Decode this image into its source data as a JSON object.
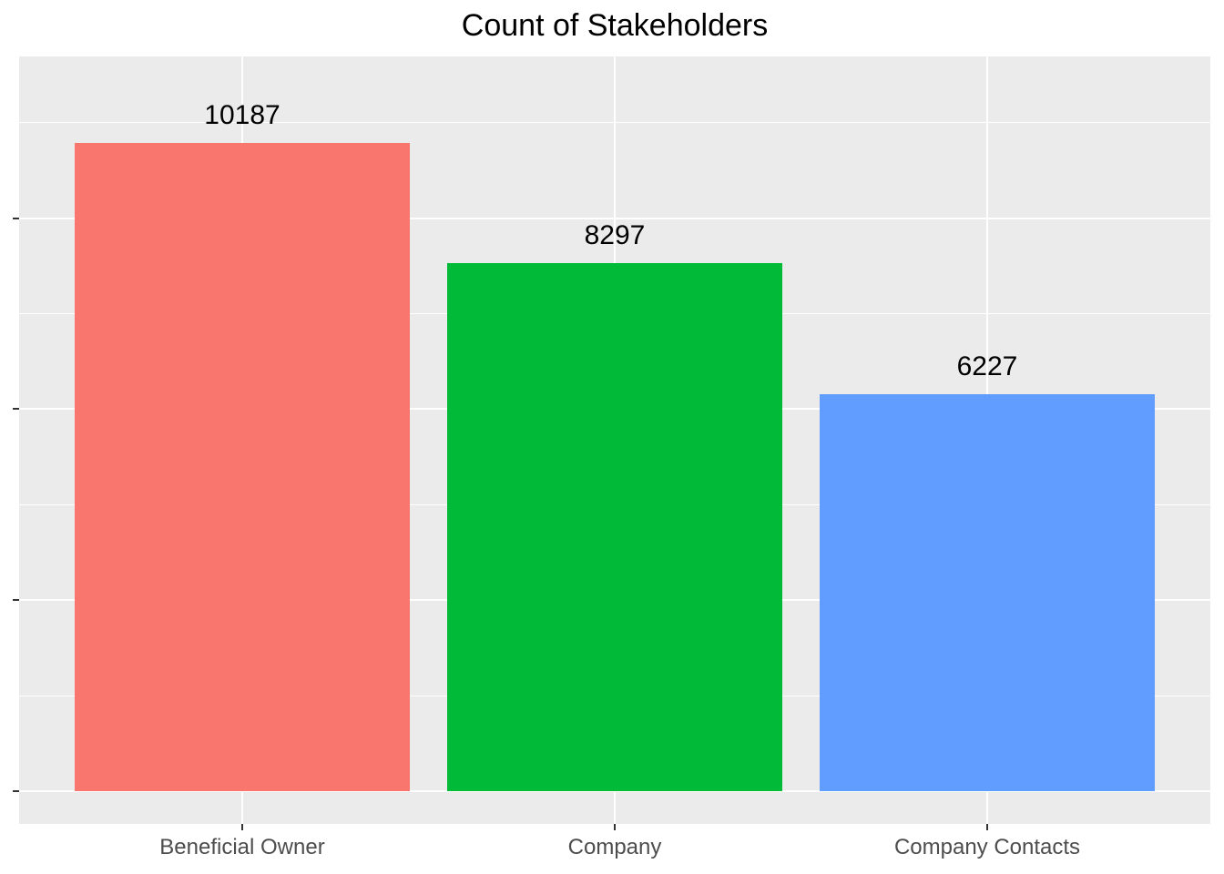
{
  "chart_data": {
    "type": "bar",
    "title": "Count of Stakeholders",
    "categories": [
      "Beneficial Owner",
      "Company",
      "Company Contacts"
    ],
    "values": [
      10187,
      8297,
      6227
    ],
    "bar_colors": [
      "#F8766D",
      "#00BA38",
      "#619CFF"
    ],
    "xlabel": "",
    "ylabel": "",
    "ylim": [
      0,
      11500
    ],
    "yticks": [
      0,
      3000,
      6000,
      9000
    ],
    "minor_yticks": [
      1500,
      4500,
      7500,
      10500
    ],
    "ytick_labels_visible": false,
    "grid": true,
    "legend": "none",
    "panel_bg": "#EBEBEB",
    "grid_color": "#FFFFFF",
    "tick_color": "#333333",
    "axis_text_color": "#4D4D4D",
    "value_label_color": "#000000",
    "background_color": "#FFFFFF"
  }
}
